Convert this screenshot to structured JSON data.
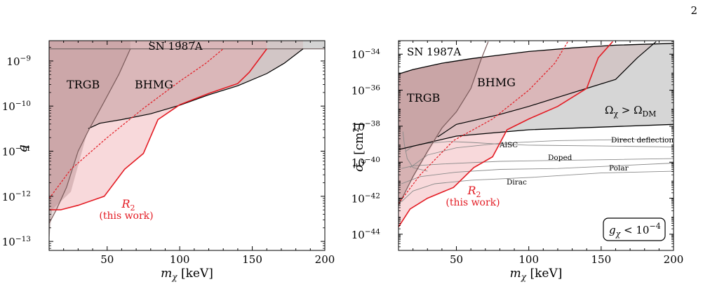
{
  "page": {
    "number": "2"
  },
  "chart_data": [
    {
      "type": "area",
      "xlabel": "m_χ [keV]",
      "ylabel": "q",
      "xlim": [
        10,
        200
      ],
      "ylim_log10": [
        -13.2,
        -8.55
      ],
      "y_scale": "log",
      "xticks": [
        50,
        100,
        150,
        200
      ],
      "yticks": [
        {
          "exp": -9,
          "label": "10",
          "sup": "−9"
        },
        {
          "exp": -10,
          "label": "10",
          "sup": "−10"
        },
        {
          "exp": -11,
          "label": "10",
          "sup": "−11"
        },
        {
          "exp": -12,
          "label": "10",
          "sup": "−12"
        },
        {
          "exp": -13,
          "label": "10",
          "sup": "−13"
        }
      ],
      "regions": [
        {
          "name": "SN 1987A",
          "label": "SN 1987A",
          "color": "#cfcfcf",
          "boundary": [
            [
              10,
              -8.73
            ],
            [
              200,
              -8.73
            ]
          ]
        },
        {
          "name": "BHMG",
          "label": "BHMG",
          "color": "#d9b7b7",
          "boundary": [
            [
              10,
              -13.0
            ],
            [
              12,
              -12.3
            ],
            [
              25,
              -11.9
            ],
            [
              37,
              -10.5
            ],
            [
              45,
              -10.38
            ],
            [
              60,
              -10.3
            ],
            [
              80,
              -10.17
            ],
            [
              100,
              -9.98
            ],
            [
              120,
              -9.75
            ],
            [
              140,
              -9.55
            ],
            [
              160,
              -9.28
            ],
            [
              172,
              -9.05
            ],
            [
              185,
              -8.73
            ]
          ]
        },
        {
          "name": "TRGB",
          "label": "TRGB",
          "color": "#c8a7a7",
          "boundary": [
            [
              10,
              -12.6
            ],
            [
              15,
              -12.3
            ],
            [
              22,
              -11.8
            ],
            [
              30,
              -11.0
            ],
            [
              37,
              -10.55
            ],
            [
              48,
              -9.9
            ],
            [
              58,
              -9.3
            ],
            [
              66,
              -8.73
            ]
          ]
        },
        {
          "name": "R2",
          "label": "R",
          "label_sub": "2",
          "label_note": "(this work)",
          "color": "#e8212a",
          "boundary": [
            [
              10,
              -12.3
            ],
            [
              18,
              -12.3
            ],
            [
              30,
              -12.2
            ],
            [
              48,
              -12.0
            ],
            [
              62,
              -11.4
            ],
            [
              75,
              -11.05
            ],
            [
              85,
              -10.3
            ],
            [
              100,
              -9.97
            ],
            [
              120,
              -9.72
            ],
            [
              140,
              -9.5
            ],
            [
              148,
              -9.25
            ],
            [
              160,
              -8.73
            ]
          ],
          "dashed": [
            [
              10,
              -12.05
            ],
            [
              25,
              -11.4
            ],
            [
              50,
              -10.7
            ],
            [
              75,
              -10.05
            ],
            [
              100,
              -9.45
            ],
            [
              118,
              -9.05
            ],
            [
              130,
              -8.73
            ]
          ]
        }
      ]
    },
    {
      "type": "area",
      "xlabel": "m_χ [keV]",
      "ylabel": "σ̄_e [cm²]",
      "xlim": [
        10,
        200
      ],
      "ylim_log10": [
        -44.9,
        -33.25
      ],
      "y_scale": "log",
      "xticks": [
        50,
        100,
        150,
        200
      ],
      "yticks": [
        {
          "exp": -34,
          "label": "10",
          "sup": "−34"
        },
        {
          "exp": -36,
          "label": "10",
          "sup": "−36"
        },
        {
          "exp": -38,
          "label": "10",
          "sup": "−38"
        },
        {
          "exp": -40,
          "label": "10",
          "sup": "−40"
        },
        {
          "exp": -42,
          "label": "10",
          "sup": "−42"
        },
        {
          "exp": -44,
          "label": "10",
          "sup": "−44"
        }
      ],
      "regions": [
        {
          "name": "SN 1987A",
          "label": "SN 1987A",
          "boundary": [
            [
              10,
              -35.1
            ],
            [
              20,
              -34.85
            ],
            [
              40,
              -34.5
            ],
            [
              60,
              -34.25
            ],
            [
              80,
              -34.05
            ],
            [
              100,
              -33.85
            ],
            [
              130,
              -33.65
            ],
            [
              160,
              -33.5
            ],
            [
              200,
              -33.4
            ]
          ]
        },
        {
          "name": "Ω_χ > Ω_DM",
          "label": "Ω",
          "label_sub": "χ",
          "label_rel": " > Ω",
          "label_sub2": "DM",
          "boundary": [
            [
              10,
              -39.3
            ],
            [
              50,
              -38.55
            ],
            [
              100,
              -38.2
            ],
            [
              150,
              -38.05
            ],
            [
              200,
              -37.9
            ]
          ]
        },
        {
          "name": "BHMG",
          "label": "BHMG",
          "boundary": [
            [
              10,
              -42.5
            ],
            [
              15,
              -41.6
            ],
            [
              25,
              -40.2
            ],
            [
              37,
              -38.6
            ],
            [
              50,
              -37.9
            ],
            [
              80,
              -37.35
            ],
            [
              100,
              -36.9
            ],
            [
              120,
              -36.4
            ],
            [
              140,
              -35.9
            ],
            [
              160,
              -35.4
            ],
            [
              175,
              -34.2
            ],
            [
              188,
              -33.3
            ]
          ]
        },
        {
          "name": "TRGB",
          "label": "TRGB",
          "boundary": [
            [
              10,
              -42.4
            ],
            [
              20,
              -40.8
            ],
            [
              30,
              -39.4
            ],
            [
              40,
              -38.1
            ],
            [
              50,
              -37.2
            ],
            [
              60,
              -35.9
            ],
            [
              67,
              -34.3
            ],
            [
              72,
              -33.3
            ]
          ]
        },
        {
          "name": "R2",
          "label": "R",
          "label_sub": "2",
          "label_note": "(this work)",
          "boundary": [
            [
              10,
              -43.6
            ],
            [
              18,
              -42.6
            ],
            [
              30,
              -42.0
            ],
            [
              48,
              -41.4
            ],
            [
              62,
              -40.3
            ],
            [
              75,
              -39.7
            ],
            [
              85,
              -38.2
            ],
            [
              100,
              -37.6
            ],
            [
              120,
              -36.9
            ],
            [
              140,
              -35.9
            ],
            [
              148,
              -34.2
            ],
            [
              158,
              -33.3
            ]
          ],
          "dashed": [
            [
              10,
              -42.3
            ],
            [
              25,
              -40.7
            ],
            [
              48,
              -38.8
            ],
            [
              75,
              -37.6
            ],
            [
              100,
              -36.0
            ],
            [
              118,
              -34.5
            ],
            [
              127,
              -33.3
            ]
          ]
        }
      ],
      "curves": [
        {
          "name": "AlSC",
          "label": "AlSC",
          "points": [
            [
              15,
              -39.4
            ],
            [
              20,
              -39.1
            ],
            [
              30,
              -38.95
            ],
            [
              45,
              -38.85
            ],
            [
              60,
              -38.9
            ],
            [
              80,
              -39.0
            ],
            [
              100,
              -39.05
            ],
            [
              150,
              -39.1
            ],
            [
              200,
              -39.15
            ]
          ]
        },
        {
          "name": "Direct deflection",
          "label": "Direct deflection",
          "points": [
            [
              18,
              -40.3
            ],
            [
              30,
              -39.6
            ],
            [
              50,
              -39.2
            ],
            [
              80,
              -38.95
            ],
            [
              120,
              -38.8
            ],
            [
              160,
              -38.75
            ],
            [
              200,
              -38.7
            ]
          ]
        },
        {
          "name": "Doped",
          "label": "Doped",
          "points": [
            [
              12,
              -40.35
            ],
            [
              20,
              -40.2
            ],
            [
              40,
              -40.1
            ],
            [
              80,
              -39.95
            ],
            [
              120,
              -39.9
            ],
            [
              160,
              -39.85
            ],
            [
              200,
              -39.8
            ]
          ]
        },
        {
          "name": "Polar",
          "label": "Polar",
          "points": [
            [
              12,
              -41.2
            ],
            [
              25,
              -40.8
            ],
            [
              50,
              -40.55
            ],
            [
              80,
              -40.4
            ],
            [
              120,
              -40.35
            ],
            [
              160,
              -40.2
            ],
            [
              200,
              -40.05
            ]
          ]
        },
        {
          "name": "Dirac",
          "label": "Dirac",
          "points": [
            [
              12,
              -42.2
            ],
            [
              20,
              -41.6
            ],
            [
              35,
              -41.2
            ],
            [
              60,
              -41.0
            ],
            [
              100,
              -40.85
            ],
            [
              150,
              -40.6
            ],
            [
              200,
              -40.5
            ]
          ]
        },
        {
          "name": "steep",
          "label": "",
          "points": [
            [
              13,
              -38.3
            ],
            [
              14,
              -39.0
            ],
            [
              16,
              -39.8
            ],
            [
              20,
              -40.3
            ],
            [
              30,
              -40.5
            ]
          ]
        }
      ],
      "annotation": {
        "text": "g",
        "sub": "χ",
        "rel": " < 10",
        "sup": "−4"
      }
    }
  ]
}
